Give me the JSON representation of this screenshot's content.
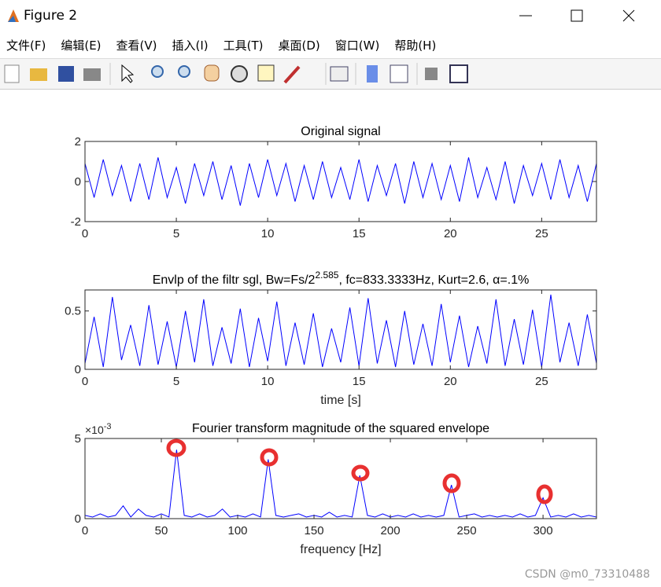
{
  "window": {
    "title": "Figure 2",
    "menu": [
      "文件(F)",
      "编辑(E)",
      "查看(V)",
      "插入(I)",
      "工具(T)",
      "桌面(D)",
      "窗口(W)",
      "帮助(H)"
    ],
    "watermark": "CSDN @m0_73310488"
  },
  "chart_data": [
    {
      "type": "line",
      "title": [
        "Original signal"
      ],
      "color": "#0000ff",
      "xlim": [
        0,
        28
      ],
      "xticks": [
        0,
        5,
        10,
        15,
        20,
        25
      ],
      "ylim": [
        -2,
        2
      ],
      "yticks": [
        -2,
        0,
        2
      ],
      "x": [
        0,
        0.5,
        1,
        1.5,
        2,
        2.5,
        3,
        3.5,
        4,
        4.5,
        5,
        5.5,
        6,
        6.5,
        7,
        7.5,
        8,
        8.5,
        9,
        9.5,
        10,
        10.5,
        11,
        11.5,
        12,
        12.5,
        13,
        13.5,
        14,
        14.5,
        15,
        15.5,
        16,
        16.5,
        17,
        17.5,
        18,
        18.5,
        19,
        19.5,
        20,
        20.5,
        21,
        21.5,
        22,
        22.5,
        23,
        23.5,
        24,
        24.5,
        25,
        25.5,
        26,
        26.5,
        27,
        27.5,
        28
      ],
      "values": [
        0.9,
        -0.8,
        1.1,
        -0.7,
        0.8,
        -1.0,
        0.9,
        -0.9,
        1.2,
        -0.8,
        0.7,
        -1.1,
        0.9,
        -0.7,
        1.0,
        -0.9,
        0.8,
        -1.2,
        0.9,
        -0.8,
        1.1,
        -0.7,
        0.9,
        -1.0,
        0.8,
        -0.9,
        1.0,
        -0.8,
        0.7,
        -0.9,
        1.1,
        -1.0,
        0.8,
        -0.7,
        0.9,
        -1.1,
        1.0,
        -0.8,
        0.9,
        -0.9,
        0.8,
        -1.0,
        1.2,
        -0.8,
        0.7,
        -0.9,
        1.0,
        -1.1,
        0.8,
        -0.7,
        0.9,
        -0.9,
        1.1,
        -0.8,
        0.8,
        -1.0,
        0.9
      ]
    },
    {
      "type": "line",
      "title": [
        "Envlp of the filtr sgl, Bw=Fs/2",
        "2.585",
        ", fc=833.3333Hz, Kurt=2.6, α=.1%"
      ],
      "color": "#0000ff",
      "xlabel": "time [s]",
      "xlim": [
        0,
        28
      ],
      "xticks": [
        0,
        5,
        10,
        15,
        20,
        25
      ],
      "ylim": [
        0,
        0.68
      ],
      "yticks": [
        0,
        0.5
      ],
      "x": [
        0,
        0.5,
        1,
        1.5,
        2,
        2.5,
        3,
        3.5,
        4,
        4.5,
        5,
        5.5,
        6,
        6.5,
        7,
        7.5,
        8,
        8.5,
        9,
        9.5,
        10,
        10.5,
        11,
        11.5,
        12,
        12.5,
        13,
        13.5,
        14,
        14.5,
        15,
        15.5,
        16,
        16.5,
        17,
        17.5,
        18,
        18.5,
        19,
        19.5,
        20,
        20.5,
        21,
        21.5,
        22,
        22.5,
        23,
        23.5,
        24,
        24.5,
        25,
        25.5,
        26,
        26.5,
        27,
        27.5,
        28
      ],
      "values": [
        0.05,
        0.45,
        0.02,
        0.62,
        0.08,
        0.38,
        0.03,
        0.55,
        0.04,
        0.41,
        0.02,
        0.5,
        0.06,
        0.6,
        0.03,
        0.36,
        0.05,
        0.52,
        0.02,
        0.44,
        0.07,
        0.58,
        0.03,
        0.4,
        0.04,
        0.48,
        0.02,
        0.35,
        0.06,
        0.53,
        0.03,
        0.61,
        0.05,
        0.42,
        0.02,
        0.5,
        0.04,
        0.39,
        0.03,
        0.56,
        0.06,
        0.46,
        0.02,
        0.37,
        0.05,
        0.6,
        0.03,
        0.43,
        0.04,
        0.51,
        0.02,
        0.64,
        0.06,
        0.4,
        0.03,
        0.47,
        0.05
      ]
    },
    {
      "type": "line",
      "title": [
        "Fourier transform magnitude of the squared envelope"
      ],
      "color": "#0000ff",
      "xlabel": "frequency [Hz]",
      "y_multiplier": [
        "×10",
        "-3"
      ],
      "xlim": [
        0,
        335
      ],
      "xticks": [
        0,
        50,
        100,
        150,
        200,
        250,
        300
      ],
      "ylim": [
        0,
        5
      ],
      "yticks": [
        0,
        5
      ],
      "x": [
        0,
        5,
        10,
        15,
        20,
        25,
        30,
        35,
        40,
        45,
        50,
        55,
        60,
        65,
        70,
        75,
        80,
        85,
        90,
        95,
        100,
        105,
        110,
        115,
        120,
        125,
        130,
        135,
        140,
        145,
        150,
        155,
        160,
        165,
        170,
        175,
        180,
        185,
        190,
        195,
        200,
        205,
        210,
        215,
        220,
        225,
        230,
        235,
        240,
        245,
        250,
        255,
        260,
        265,
        270,
        275,
        280,
        285,
        290,
        295,
        300,
        305,
        310,
        315,
        320,
        325,
        330,
        335
      ],
      "values": [
        0.2,
        0.1,
        0.3,
        0.1,
        0.2,
        0.8,
        0.1,
        0.6,
        0.2,
        0.1,
        0.3,
        0.1,
        4.3,
        0.2,
        0.1,
        0.3,
        0.1,
        0.2,
        0.6,
        0.1,
        0.2,
        0.1,
        0.3,
        0.1,
        3.7,
        0.2,
        0.1,
        0.2,
        0.3,
        0.1,
        0.2,
        0.1,
        0.4,
        0.1,
        0.2,
        0.1,
        2.7,
        0.2,
        0.1,
        0.3,
        0.1,
        0.2,
        0.1,
        0.3,
        0.1,
        0.2,
        0.1,
        0.2,
        2.1,
        0.1,
        0.2,
        0.3,
        0.1,
        0.2,
        0.1,
        0.2,
        0.1,
        0.3,
        0.1,
        0.2,
        1.3,
        0.1,
        0.2,
        0.1,
        0.3,
        0.1,
        0.2,
        0.1
      ]
    }
  ]
}
